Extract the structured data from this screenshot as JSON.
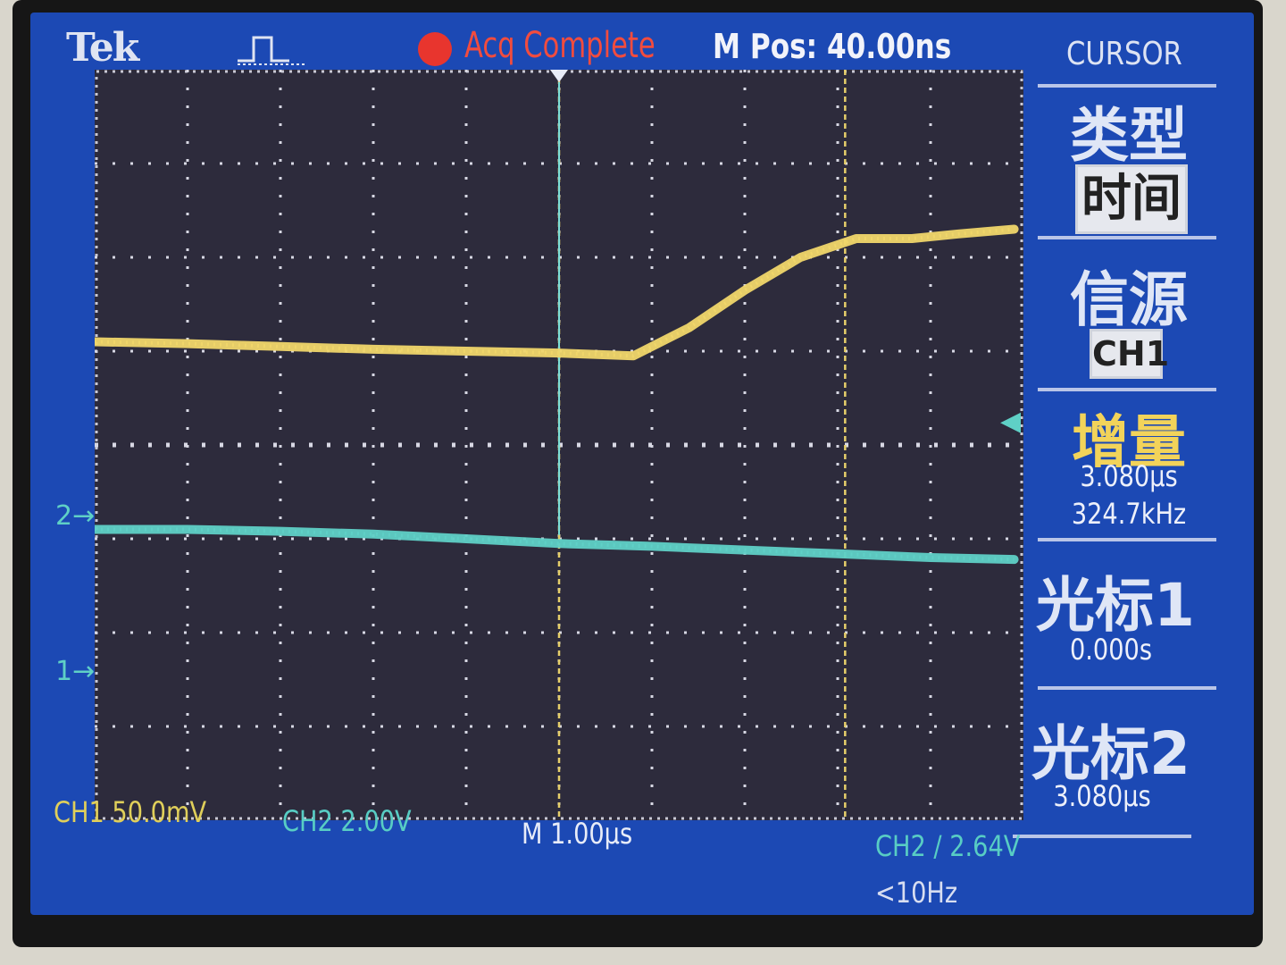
{
  "header": {
    "brand": "Tek",
    "trigger_icon": "pulse-trigger-icon",
    "acq_status": "Acq Complete",
    "m_pos": "M Pos: 40.00ns",
    "menu_title": "CURSOR"
  },
  "side_menu": {
    "type_label": "类型",
    "type_value": "时间",
    "source_label": "信源",
    "source_value": "CH1",
    "delta_label": "增量",
    "delta_time": "3.080µs",
    "delta_freq": "324.7kHz",
    "cursor1_label": "光标1",
    "cursor1_value": "0.000s",
    "cursor2_label": "光标2",
    "cursor2_value": "3.080µs"
  },
  "markers": {
    "ch2_marker": "2→",
    "ch1_marker": "1→",
    "trigger_level_arrow": "◀"
  },
  "bottom": {
    "ch1_scale": "CH1  50.0mV",
    "ch2_scale": "CH2  2.00V",
    "time_base": "M 1.00µs",
    "trigger": "CH2 ∕ 2.64V",
    "freq": "<10Hz"
  },
  "colors": {
    "screen_bg": "#1c49b4",
    "ch1": "#f0d66a",
    "ch2": "#5fd0c6",
    "cursor": "#e6cf6a",
    "acq_dot": "#e8352e"
  },
  "chart_data": {
    "type": "line",
    "x_unit": "µs",
    "x_per_div": 1.0,
    "divisions_x": 10,
    "divisions_y": 8,
    "series": [
      {
        "name": "CH1",
        "color": "#f0d66a",
        "x_div": [
          0,
          1,
          2,
          3,
          4,
          5,
          5.8,
          6.4,
          7.0,
          7.6,
          8.2,
          8.8,
          9.3,
          9.9
        ],
        "y_div": [
          1.1,
          1.08,
          1.05,
          1.02,
          1.0,
          0.98,
          0.95,
          1.25,
          1.65,
          2.0,
          2.2,
          2.2,
          2.25,
          2.3
        ]
      },
      {
        "name": "CH2",
        "color": "#5fd0c6",
        "x_div": [
          0,
          1,
          2,
          3,
          4,
          5,
          6,
          7,
          8,
          9,
          9.9
        ],
        "y_div": [
          -0.9,
          -0.9,
          -0.92,
          -0.95,
          -1.0,
          -1.05,
          -1.08,
          -1.12,
          -1.16,
          -1.2,
          -1.22
        ]
      }
    ],
    "cursors_div": [
      5.0,
      8.08
    ]
  }
}
